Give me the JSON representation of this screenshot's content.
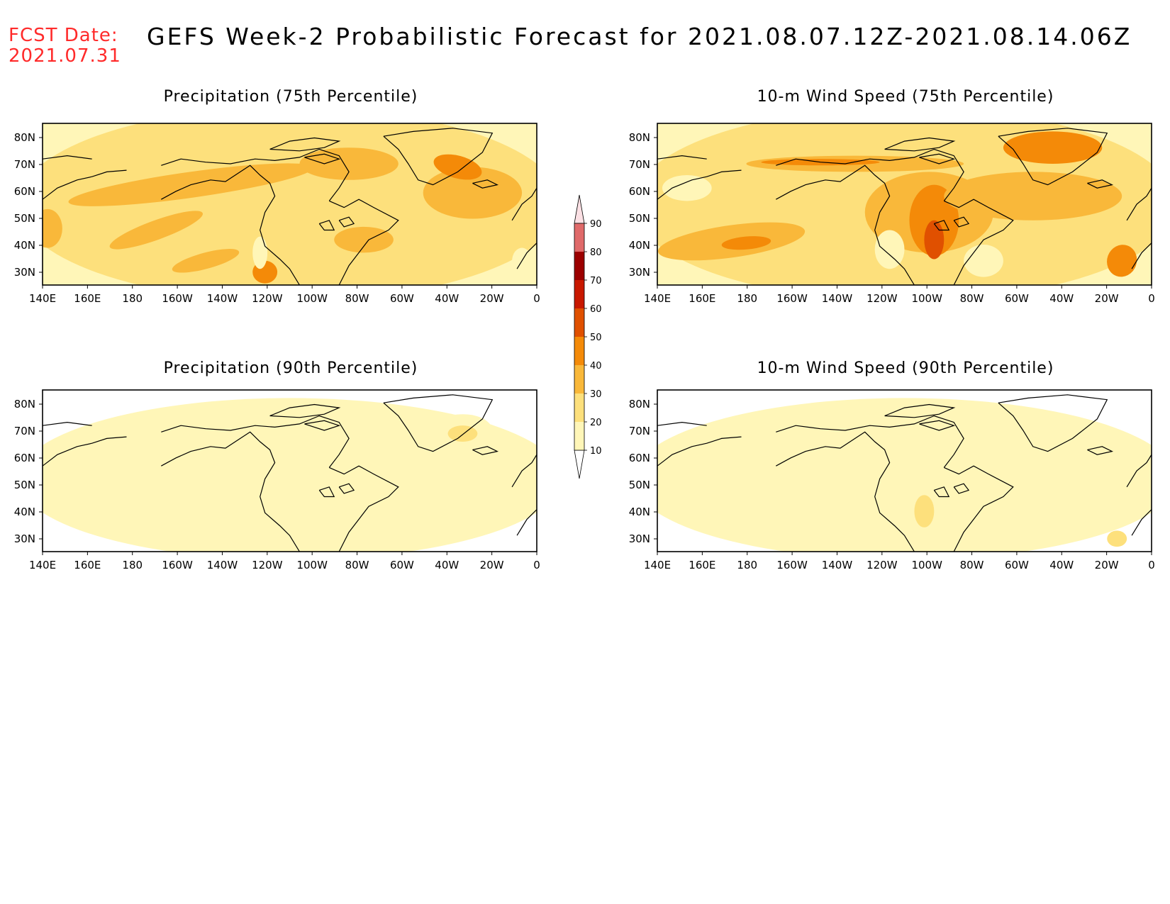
{
  "header": {
    "fcst_label": "FCST Date:",
    "fcst_date": "2021.07.31",
    "title": "GEFS Week-2 Probabilistic Forecast for 2021.08.07.12Z-2021.08.14.06Z"
  },
  "colors": {
    "c10": "#fff6b8",
    "c20": "#fde07c",
    "c30": "#f9b83a",
    "c40": "#f48a08",
    "c50": "#e05000",
    "c60": "#c81800",
    "c70": "#9c0000",
    "c80": "#e06a6a",
    "c90": "#f2a8b0",
    "fcst_text": "#ff2a2a"
  },
  "axes": {
    "lon_labels": [
      "140E",
      "160E",
      "180",
      "160W",
      "140W",
      "120W",
      "100W",
      "80W",
      "60W",
      "40W",
      "20W",
      "0"
    ],
    "lat_labels": [
      "80N",
      "70N",
      "60N",
      "50N",
      "40N",
      "30N"
    ]
  },
  "colorbar": {
    "levels": [
      "10",
      "20",
      "30",
      "40",
      "50",
      "60",
      "70",
      "80",
      "90"
    ]
  },
  "panels": [
    {
      "title": "Precipitation (75th Percentile)"
    },
    {
      "title": "10-m Wind Speed (75th Percentile)"
    },
    {
      "title": "Precipitation (90th Percentile)"
    },
    {
      "title": "10-m Wind Speed (90th Percentile)"
    }
  ]
}
